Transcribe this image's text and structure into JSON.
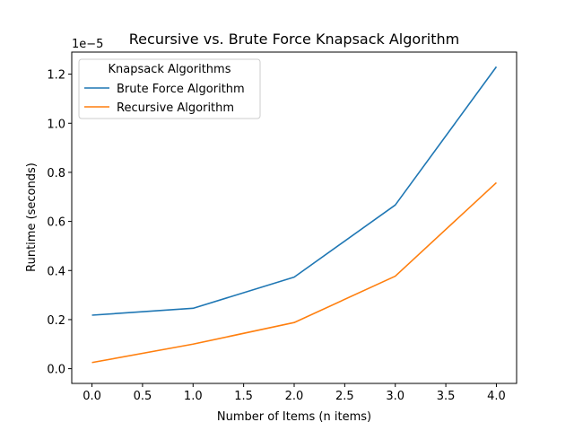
{
  "chart_data": {
    "type": "line",
    "title": "Recursive vs. Brute Force Knapsack Algorithm",
    "xlabel": "Number of Items (n items)",
    "ylabel": "Runtime (seconds)",
    "y_offset_label": "1e−5",
    "xlim": [
      -0.2,
      4.2
    ],
    "ylim": [
      -0.06,
      1.29
    ],
    "xticks": [
      "0.0",
      "0.5",
      "1.0",
      "1.5",
      "2.0",
      "2.5",
      "3.0",
      "3.5",
      "4.0"
    ],
    "yticks": [
      "0.0",
      "0.2",
      "0.4",
      "0.6",
      "0.8",
      "1.0",
      "1.2"
    ],
    "x": [
      0,
      1,
      2,
      3,
      4
    ],
    "series": [
      {
        "name": "Brute Force Algorithm",
        "color": "#1f77b4",
        "values": [
          0.218,
          0.246,
          0.373,
          0.667,
          1.23
        ]
      },
      {
        "name": "Recursive Algorithm",
        "color": "#ff7f0e",
        "values": [
          0.025,
          0.1,
          0.188,
          0.377,
          0.758
        ]
      }
    ],
    "legend": {
      "title": "Knapsack Algorithms",
      "placement": "upper-left"
    },
    "grid": false
  }
}
